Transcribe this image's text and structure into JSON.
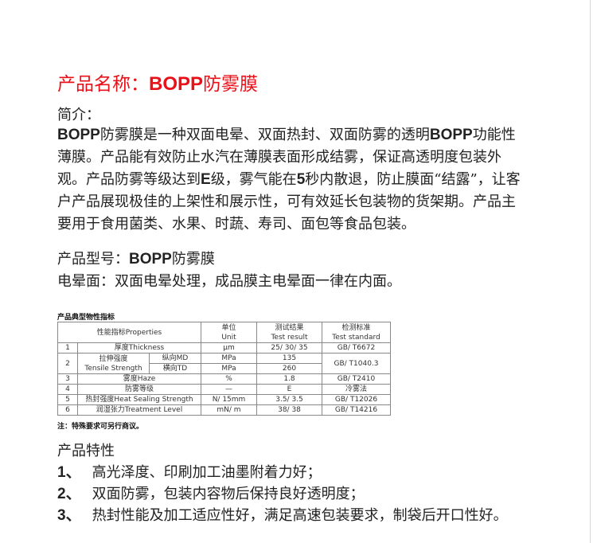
{
  "title": {
    "prefix": "产品名称：",
    "bold": "BOPP",
    "suffix": "防雾膜",
    "color": "#e8111a"
  },
  "intro": {
    "label": "简介：",
    "lines": [
      [
        {
          "t": "BOPP",
          "b": true
        },
        {
          "t": "防雾膜是一种双面电晕、双面热封、双面防雾的透明"
        },
        {
          "t": "BOPP",
          "b": true
        },
        {
          "t": "功能性"
        }
      ],
      [
        {
          "t": "薄膜。产品能有效防止水汽在薄膜表面形成结雾，保证高透明度包装外"
        }
      ],
      [
        {
          "t": "观。产品防雾等级达到"
        },
        {
          "t": "E",
          "b": true
        },
        {
          "t": "级，雾气能在"
        },
        {
          "t": "5",
          "b": true
        },
        {
          "t": "秒内散退，防止膜面“结露”，让客"
        }
      ],
      [
        {
          "t": "户产品展现极佳的上架性和展示性，可有效延长包装物的货架期。产品主"
        }
      ],
      [
        {
          "t": "要用于食用菌类、水果、时蔬、寿司、面包等食品包装。"
        }
      ]
    ]
  },
  "model": [
    [
      {
        "t": "产品型号："
      },
      {
        "t": "BOPP",
        "b": true
      },
      {
        "t": "防雾膜"
      }
    ],
    [
      {
        "t": "电晕面：双面电晕处理，成品膜主电晕面一律在内面。"
      }
    ]
  ],
  "table": {
    "title": "产品典型物性指标",
    "headers": {
      "prop": "性能指标Properties",
      "unit_cn": "单位",
      "unit_en": "Unit",
      "result_cn": "测试结果",
      "result_en": "Test result",
      "std_cn": "检测标准",
      "std_en": "Test standard"
    },
    "rows": {
      "r1": {
        "no": "1",
        "prop": "厚度Thickness",
        "unit": "μm",
        "result": "25/ 30/ 35",
        "std": "GB/ T6672"
      },
      "r2": {
        "no": "2",
        "prop_cn": "拉伸强度",
        "prop_en": "Tensile Strength",
        "md": "纵向MD",
        "td": "横向TD",
        "unit_md": "MPa",
        "unit_td": "MPa",
        "result_md": "135",
        "result_td": "260",
        "std": "GB/ T1040.3"
      },
      "r3": {
        "no": "3",
        "prop": "雾度Haze",
        "unit": "%",
        "result": "1.8",
        "std": "GB/ T2410"
      },
      "r4": {
        "no": "4",
        "prop": "防雾等级",
        "unit": "—",
        "result": "E",
        "std": "冷雾法"
      },
      "r5": {
        "no": "5",
        "prop": "热封强度Heat Sealing Strength",
        "unit": "N/ 15mm",
        "result": "3.5/ 3.5",
        "std": "GB/ T12026"
      },
      "r6": {
        "no": "6",
        "prop": "润湿张力Treatment Level",
        "unit": "mN/ m",
        "result": "38/ 38",
        "std": "GB/ T14216"
      }
    },
    "note": "注：特殊要求可另行商议。"
  },
  "features": {
    "heading": "产品特性",
    "items": [
      {
        "num": "1、",
        "text": "高光泽度、印刷加工油墨附着力好；"
      },
      {
        "num": "2、",
        "text": "双面防雾，包装内容物后保持良好透明度；"
      },
      {
        "num": "3、",
        "text": "热封性能及加工适应性好，满足高速包装要求，制袋后开口性好。"
      }
    ]
  }
}
